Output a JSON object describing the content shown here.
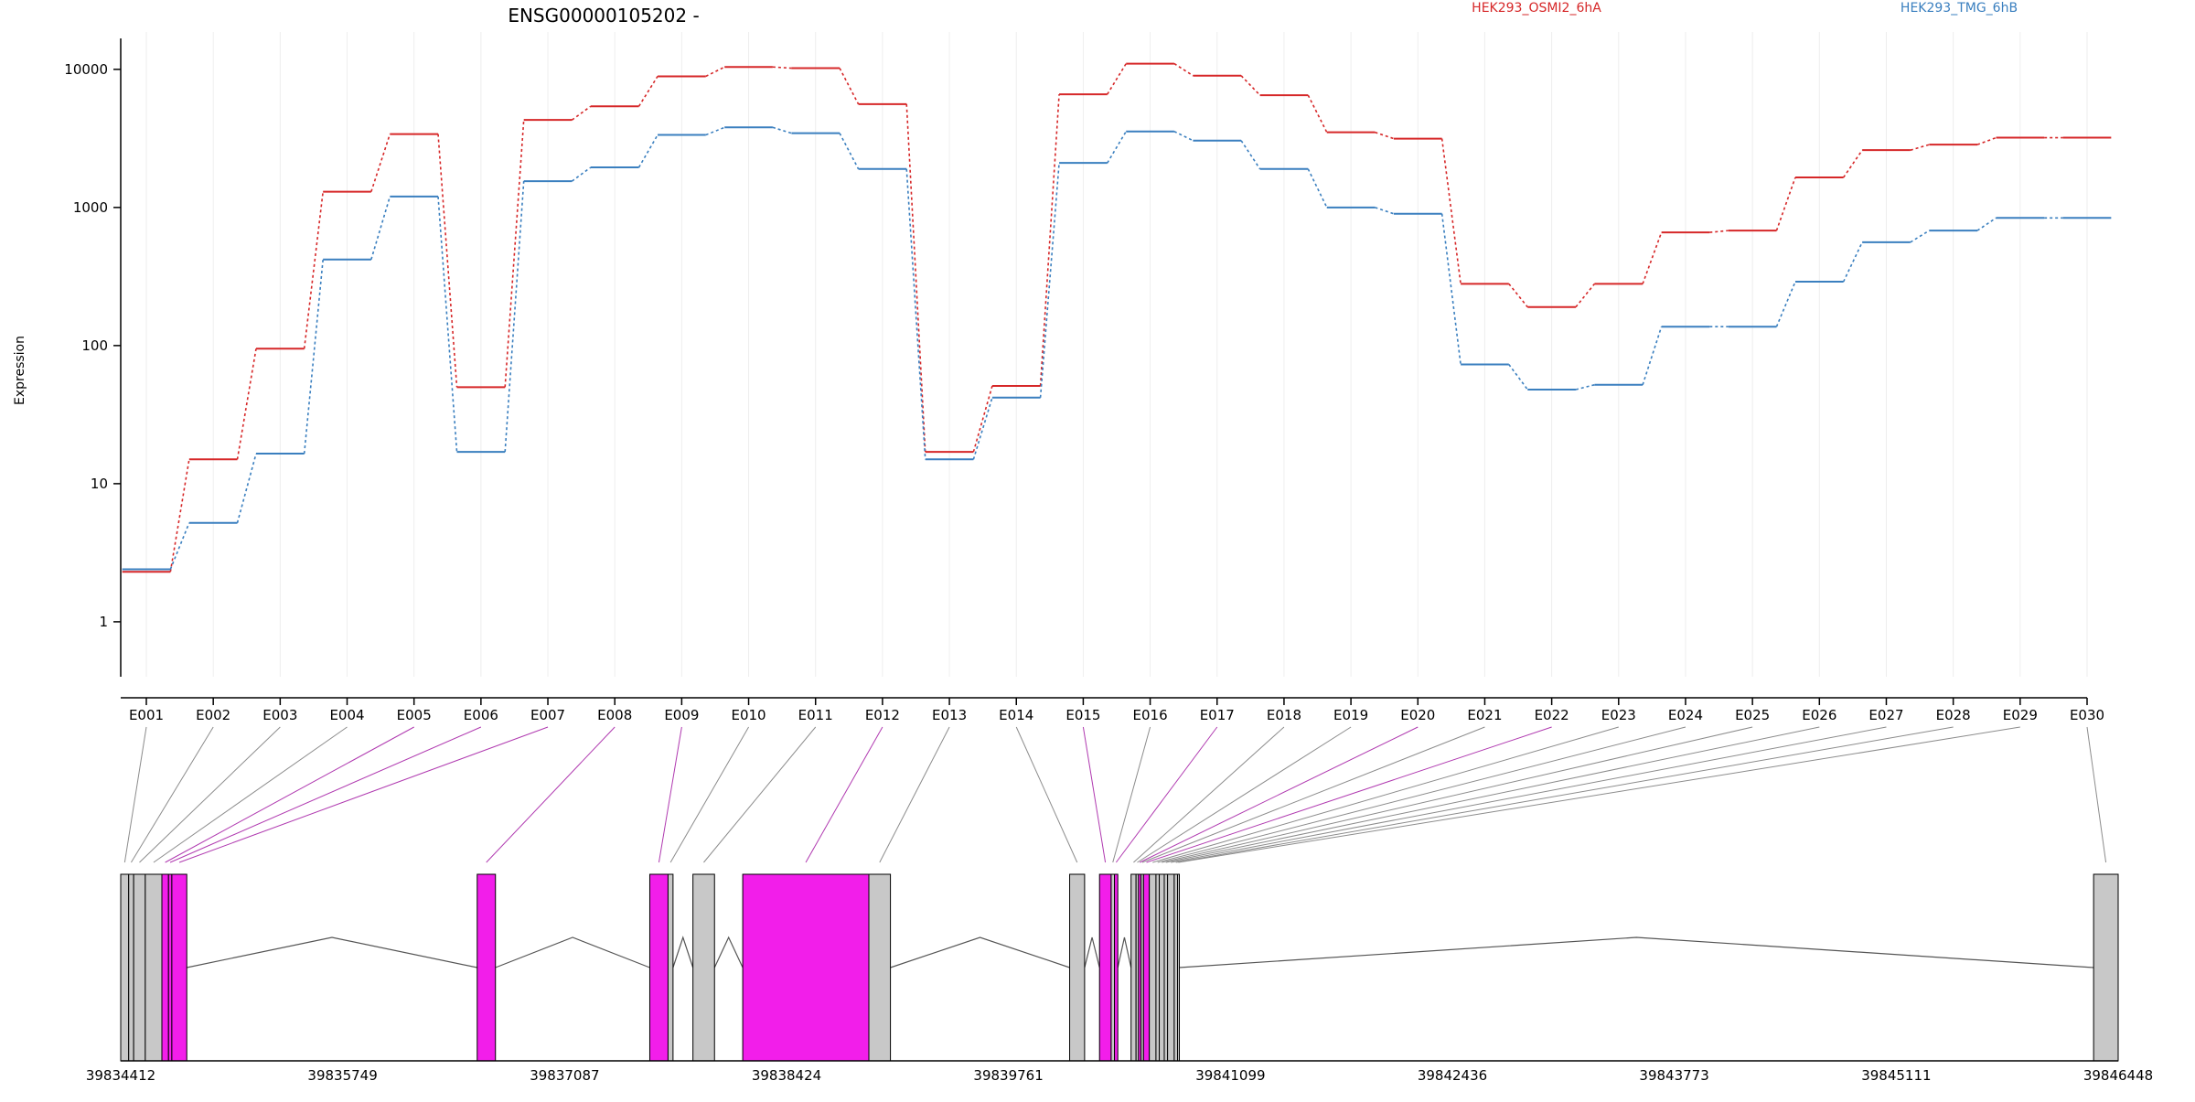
{
  "title": "ENSG00000105202 -",
  "ylabel": "Expression",
  "legend": [
    {
      "label": "HEK293_OSMI2_6hA",
      "color": "#d62728"
    },
    {
      "label": "HEK293_TMG_6hB",
      "color": "#3a7fbf"
    }
  ],
  "colors": {
    "series_a": "#d62728",
    "series_b": "#3a7fbf",
    "exon_highlight": "#f21eea",
    "exon_plain": "#c8c8c8",
    "connector_highlight": "#b03ab0",
    "connector_plain": "#8c8c8c"
  },
  "chart_data": {
    "type": "line",
    "yscale": "log",
    "ylim": [
      0.4,
      16000
    ],
    "yticks": [
      "1",
      "10",
      "100",
      "1000",
      "10000"
    ],
    "categories": [
      "E001",
      "E002",
      "E003",
      "E004",
      "E005",
      "E006",
      "E007",
      "E008",
      "E009",
      "E010",
      "E011",
      "E012",
      "E013",
      "E014",
      "E015",
      "E016",
      "E017",
      "E018",
      "E019",
      "E020",
      "E021",
      "E022",
      "E023",
      "E024",
      "E025",
      "E026",
      "E027",
      "E028",
      "E029",
      "E030"
    ],
    "series": [
      {
        "name": "HEK293_OSMI2_6hA",
        "values": [
          2.3,
          15,
          95,
          1300,
          3400,
          50,
          4300,
          5400,
          8900,
          10400,
          10200,
          5600,
          17,
          51,
          6600,
          11000,
          9000,
          6500,
          3500,
          3150,
          280,
          190,
          280,
          660,
          680,
          1650,
          2600,
          2850,
          3200,
          3200
        ]
      },
      {
        "name": "HEK293_TMG_6hB",
        "values": [
          2.4,
          5.2,
          16.5,
          420,
          1200,
          17,
          1550,
          1950,
          3350,
          3800,
          3450,
          1900,
          15,
          42,
          2100,
          3550,
          3050,
          1900,
          1000,
          900,
          73,
          48,
          52,
          137,
          137,
          290,
          560,
          680,
          840,
          840
        ]
      }
    ]
  },
  "gene_model": {
    "genomic_range": [
      39834412,
      39846448
    ],
    "axis_ticks": [
      "39834412",
      "39835749",
      "39837087",
      "39838424",
      "39839761",
      "39841099",
      "39842436",
      "39843773",
      "39845111",
      "39846448"
    ],
    "exons": [
      {
        "start": 39834412,
        "end": 39834460,
        "highlight": false
      },
      {
        "start": 39834460,
        "end": 39834490,
        "highlight": false
      },
      {
        "start": 39834490,
        "end": 39834560,
        "highlight": false
      },
      {
        "start": 39834560,
        "end": 39834660,
        "highlight": false
      },
      {
        "start": 39834660,
        "end": 39834700,
        "highlight": true
      },
      {
        "start": 39834700,
        "end": 39834720,
        "highlight": true
      },
      {
        "start": 39834720,
        "end": 39834810,
        "highlight": true
      },
      {
        "start": 39836560,
        "end": 39836670,
        "highlight": true
      },
      {
        "start": 39837600,
        "end": 39837710,
        "highlight": true
      },
      {
        "start": 39837710,
        "end": 39837740,
        "highlight": false
      },
      {
        "start": 39837860,
        "end": 39837990,
        "highlight": false
      },
      {
        "start": 39838160,
        "end": 39838920,
        "highlight": true
      },
      {
        "start": 39838920,
        "end": 39839050,
        "highlight": false
      },
      {
        "start": 39840130,
        "end": 39840220,
        "highlight": false
      },
      {
        "start": 39840310,
        "end": 39840380,
        "highlight": true
      },
      {
        "start": 39840380,
        "end": 39840400,
        "highlight": false
      },
      {
        "start": 39840400,
        "end": 39840420,
        "highlight": true
      },
      {
        "start": 39840500,
        "end": 39840530,
        "highlight": false
      },
      {
        "start": 39840530,
        "end": 39840545,
        "highlight": false
      },
      {
        "start": 39840545,
        "end": 39840560,
        "highlight": true
      },
      {
        "start": 39840560,
        "end": 39840575,
        "highlight": false
      },
      {
        "start": 39840575,
        "end": 39840610,
        "highlight": true
      },
      {
        "start": 39840610,
        "end": 39840650,
        "highlight": false
      },
      {
        "start": 39840650,
        "end": 39840670,
        "highlight": false
      },
      {
        "start": 39840670,
        "end": 39840700,
        "highlight": false
      },
      {
        "start": 39840700,
        "end": 39840720,
        "highlight": false
      },
      {
        "start": 39840720,
        "end": 39840760,
        "highlight": false
      },
      {
        "start": 39840760,
        "end": 39840780,
        "highlight": false
      },
      {
        "start": 39840780,
        "end": 39840790,
        "highlight": false
      },
      {
        "start": 39846300,
        "end": 39846448,
        "highlight": false
      }
    ],
    "introns": [
      [
        39834810,
        39836560
      ],
      [
        39836670,
        39837600
      ],
      [
        39837740,
        39837860
      ],
      [
        39837990,
        39838160
      ],
      [
        39839050,
        39840130
      ],
      [
        39840220,
        39840310
      ],
      [
        39840420,
        39840500
      ],
      [
        39840790,
        39846300
      ]
    ]
  }
}
